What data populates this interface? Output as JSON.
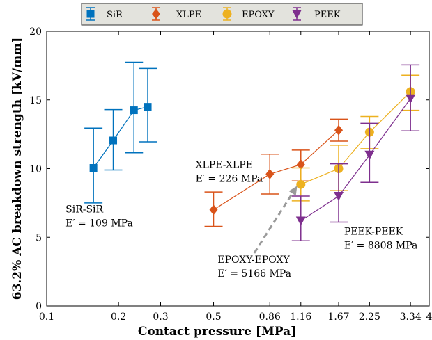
{
  "chart_data": {
    "type": "scatter",
    "xscale": "log",
    "xlabel": "Contact pressure [MPa]",
    "ylabel": "63.2% AC breakdown strength [kV/mm]",
    "xlim": [
      0.1,
      4
    ],
    "ylim": [
      0,
      20
    ],
    "grid": false,
    "legend_position": "top-center",
    "xticks": [
      {
        "value": 0.1,
        "label": "0.1"
      },
      {
        "value": 0.2,
        "label": "0.2"
      },
      {
        "value": 0.3,
        "label": "0.3"
      },
      {
        "value": 0.5,
        "label": "0.5"
      },
      {
        "value": 0.86,
        "label": "0.86"
      },
      {
        "value": 1.16,
        "label": "1.16"
      },
      {
        "value": 1.67,
        "label": "1.67"
      },
      {
        "value": 2.25,
        "label": "2.25"
      },
      {
        "value": 3.34,
        "label": "3.34"
      },
      {
        "value": 4,
        "label": "4"
      }
    ],
    "yticks": [
      {
        "value": 0,
        "label": "0"
      },
      {
        "value": 5,
        "label": "5"
      },
      {
        "value": 10,
        "label": "10"
      },
      {
        "value": 15,
        "label": "15"
      },
      {
        "value": 20,
        "label": "20"
      }
    ],
    "series": [
      {
        "name": "SiR",
        "color": "#0072BD",
        "marker": "square",
        "points": [
          {
            "x": 0.157,
            "y": 10.05,
            "lo": 7.5,
            "hi": 12.95
          },
          {
            "x": 0.19,
            "y": 12.05,
            "lo": 9.9,
            "hi": 14.3
          },
          {
            "x": 0.232,
            "y": 14.25,
            "lo": 11.15,
            "hi": 17.75
          },
          {
            "x": 0.265,
            "y": 14.5,
            "lo": 11.95,
            "hi": 17.3
          }
        ]
      },
      {
        "name": "XLPE",
        "color": "#D95319",
        "marker": "diamond",
        "points": [
          {
            "x": 0.5,
            "y": 7.0,
            "lo": 5.8,
            "hi": 8.3
          },
          {
            "x": 0.86,
            "y": 9.6,
            "lo": 8.15,
            "hi": 11.05
          },
          {
            "x": 1.16,
            "y": 10.3,
            "lo": 9.1,
            "hi": 11.35
          },
          {
            "x": 1.67,
            "y": 12.8,
            "lo": 12.0,
            "hi": 13.6
          }
        ]
      },
      {
        "name": "EPOXY",
        "color": "#EDB120",
        "marker": "circle",
        "points": [
          {
            "x": 1.16,
            "y": 8.85,
            "lo": 7.65,
            "hi": 10.05
          },
          {
            "x": 1.67,
            "y": 10.0,
            "lo": 8.4,
            "hi": 11.7
          },
          {
            "x": 2.25,
            "y": 12.65,
            "lo": 11.45,
            "hi": 13.8
          },
          {
            "x": 3.34,
            "y": 15.6,
            "lo": 14.25,
            "hi": 16.8
          }
        ]
      },
      {
        "name": "PEEK",
        "color": "#7E2F8E",
        "marker": "triangle-down",
        "points": [
          {
            "x": 1.16,
            "y": 6.2,
            "lo": 4.75,
            "hi": 8.0
          },
          {
            "x": 1.67,
            "y": 8.0,
            "lo": 6.1,
            "hi": 10.35
          },
          {
            "x": 2.25,
            "y": 11.0,
            "lo": 9.0,
            "hi": 13.3
          },
          {
            "x": 3.34,
            "y": 15.1,
            "lo": 12.75,
            "hi": 17.55
          }
        ]
      }
    ],
    "annotations": [
      {
        "id": "sir",
        "line1": "SiR-SiR",
        "line2": "E′ = 109 MPa",
        "x": 0.12,
        "y": 6.8
      },
      {
        "id": "xlpe",
        "line1": "XLPE-XLPE",
        "line2": "E′ = 226 MPa",
        "x": 0.42,
        "y": 10.05
      },
      {
        "id": "epoxy",
        "line1": "EPOXY-EPOXY",
        "line2": "E′ = 5166 MPa",
        "x": 0.52,
        "y": 3.15
      },
      {
        "id": "peek",
        "line1": "PEEK-PEEK",
        "line2": "E′ = 8808 MPa",
        "x": 1.76,
        "y": 5.2
      }
    ],
    "arrow": {
      "from": {
        "x": 0.74,
        "y": 3.85
      },
      "to": {
        "x": 1.12,
        "y": 8.75
      }
    }
  }
}
